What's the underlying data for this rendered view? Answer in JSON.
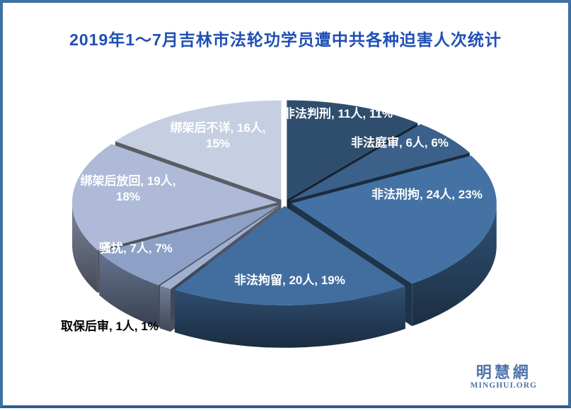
{
  "title": "2019年1～7月吉林市法轮功学员遭中共各种迫害人次统计",
  "chart_data": {
    "type": "pie",
    "style": "3d-exploded",
    "title": "2019年1～7月吉林市法轮功学员遭中共各种迫害人次统计",
    "legend_position": "none",
    "start_angle_deg": 0,
    "direction": "clockwise",
    "slices": [
      {
        "name": "非法判刑",
        "people": 11,
        "pct": 11,
        "color": "#2F4E6E",
        "label": "非法判刑, 11人, 11%"
      },
      {
        "name": "非法庭审",
        "people": 6,
        "pct": 6,
        "color": "#3B608A",
        "label": "非法庭审, 6人, 6%"
      },
      {
        "name": "非法刑拘",
        "people": 24,
        "pct": 23,
        "color": "#4472A4",
        "label": "非法刑拘, 24人, 23%"
      },
      {
        "name": "非法拘留",
        "people": 20,
        "pct": 19,
        "color": "#426E9F",
        "label": "非法拘留, 20人, 19%"
      },
      {
        "name": "取保后审",
        "people": 1,
        "pct": 1,
        "color": "#9FB0D0",
        "label": "取保后审, 1人, 1%",
        "label_color": "#000000",
        "label_outside": true
      },
      {
        "name": "骚扰",
        "people": 7,
        "pct": 7,
        "color": "#8DA0C6",
        "label": "骚扰, 7人, 7%"
      },
      {
        "name": "绑架后放回",
        "people": 19,
        "pct": 18,
        "color": "#AEBAD8",
        "label": "绑架后放回, 19人, 18%",
        "label_l1": "绑架后放回, 19人,",
        "label_l2": "18%"
      },
      {
        "name": "绑架后不详",
        "people": 16,
        "pct": 15,
        "color": "#C6CFE2",
        "label": "绑架后不详, 16人, 15%",
        "label_l1": "绑架后不详, 16人,",
        "label_l2": "15%"
      }
    ]
  },
  "watermark": {
    "cn": "明慧網",
    "en": "MINGHUI.ORG"
  }
}
